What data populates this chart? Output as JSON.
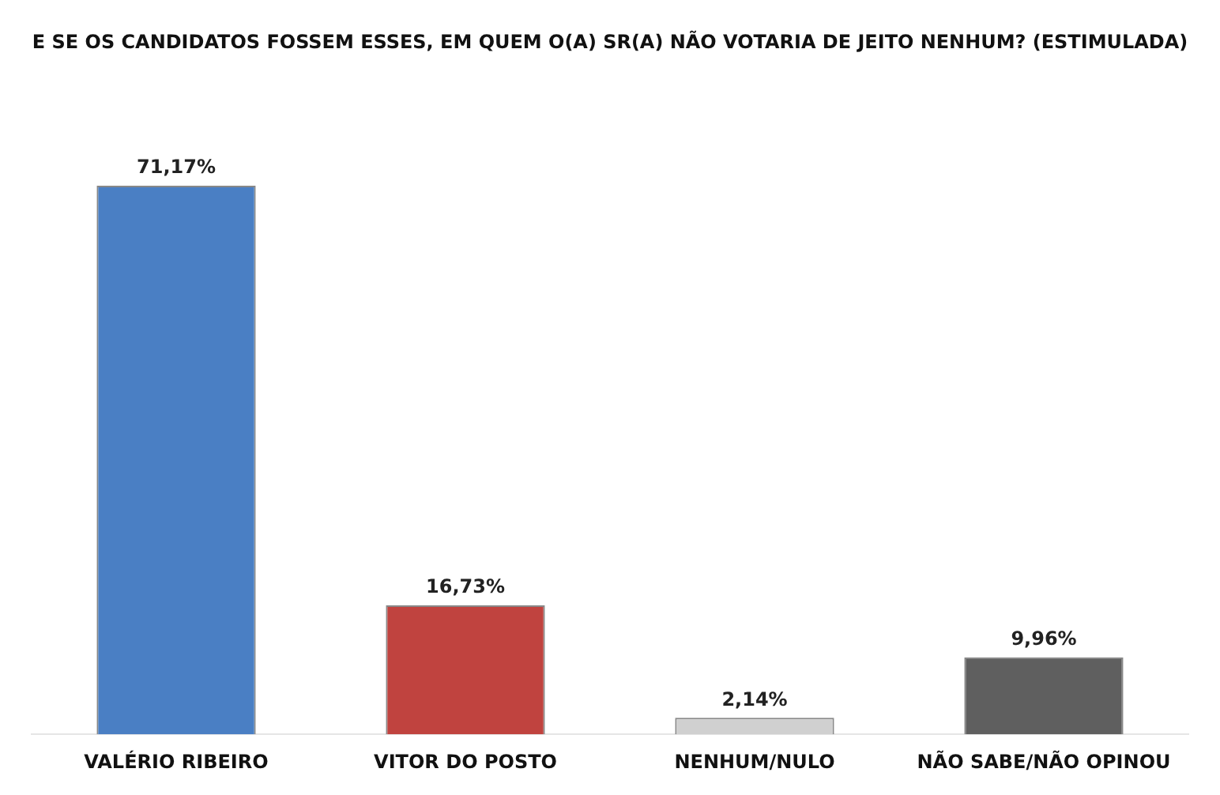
{
  "chart_data": {
    "type": "bar",
    "title": "E SE OS CANDIDATOS FOSSEM ESSES, EM QUEM O(A) SR(A) NÃO VOTARIA DE JEITO NENHUM? (ESTIMULADA)",
    "categories": [
      "VALÉRIO RIBEIRO",
      "VITOR DO POSTO",
      "NENHUM/NULO",
      "NÃO SABE/NÃO OPINOU"
    ],
    "values": [
      71.17,
      16.73,
      2.14,
      9.96
    ],
    "colors": [
      "#4a7fc4",
      "#c0433f",
      "#d0d0d0",
      "#5f5f5f"
    ],
    "value_labels": [
      "71,17%",
      "16,73%",
      "2,14%",
      "9,96%"
    ],
    "grid": false,
    "legend": false
  }
}
